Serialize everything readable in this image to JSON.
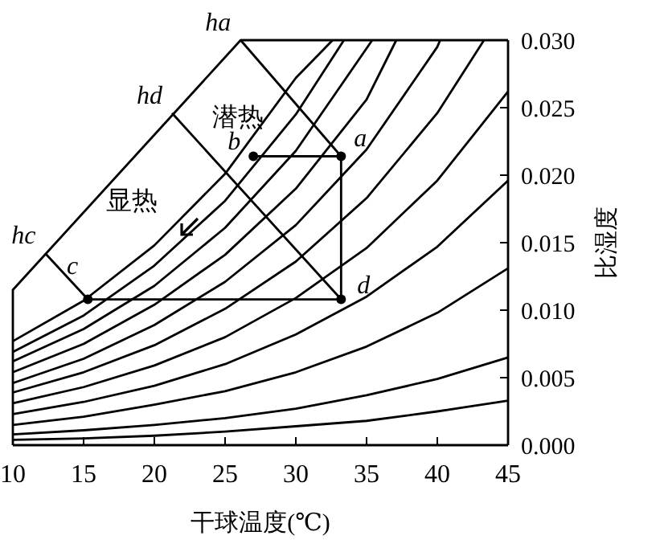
{
  "chart_data": {
    "type": "line",
    "xlabel": "干球温度(℃)",
    "ylabel": "比湿度",
    "xlim": [
      10,
      45
    ],
    "ylim": [
      0,
      0.03
    ],
    "xticks": [
      10,
      15,
      20,
      25,
      30,
      35,
      40,
      45
    ],
    "yticks": [
      {
        "value": 0,
        "label": "0.000"
      },
      {
        "value": 0.005,
        "label": "0.005"
      },
      {
        "value": 0.01,
        "label": "0.010"
      },
      {
        "value": 0.015,
        "label": "0.015"
      },
      {
        "value": 0.02,
        "label": "0.020"
      },
      {
        "value": 0.025,
        "label": "0.025"
      },
      {
        "value": 0.03,
        "label": "0.030"
      }
    ],
    "grid": false,
    "marker": "none",
    "line_style": "solid",
    "series": [
      {
        "color": "#000000",
        "x": [
          10,
          15,
          20,
          25,
          30,
          32.6
        ],
        "values": [
          0.0077,
          0.0107,
          0.0148,
          0.0201,
          0.0272,
          0.03
        ]
      },
      {
        "color": "#000000",
        "x": [
          10,
          15,
          20,
          25,
          30,
          33.4
        ],
        "values": [
          0.0069,
          0.0096,
          0.0133,
          0.0181,
          0.0245,
          0.03
        ]
      },
      {
        "color": "#000000",
        "x": [
          10,
          15,
          20,
          25,
          30,
          35.4
        ],
        "values": [
          0.0062,
          0.0086,
          0.0118,
          0.0161,
          0.0218,
          0.03
        ]
      },
      {
        "color": "#000000",
        "x": [
          10,
          15,
          20,
          25,
          30,
          35,
          37.1
        ],
        "values": [
          0.0054,
          0.0075,
          0.0104,
          0.0141,
          0.019,
          0.0256,
          0.03
        ]
      },
      {
        "color": "#000000",
        "x": [
          10,
          15,
          20,
          25,
          30,
          35,
          40,
          40.2
        ],
        "values": [
          0.0046,
          0.0064,
          0.0089,
          0.0121,
          0.0163,
          0.0219,
          0.0295,
          0.03
        ]
      },
      {
        "color": "#000000",
        "x": [
          10,
          15,
          20,
          25,
          30,
          35,
          40,
          43.3
        ],
        "values": [
          0.0039,
          0.0054,
          0.0074,
          0.0101,
          0.0136,
          0.0183,
          0.0246,
          0.03
        ]
      },
      {
        "color": "#000000",
        "x": [
          10,
          15,
          20,
          25,
          30,
          35,
          40,
          45
        ],
        "values": [
          0.0031,
          0.0043,
          0.0059,
          0.008,
          0.0109,
          0.0146,
          0.0196,
          0.0262
        ]
      },
      {
        "color": "#000000",
        "x": [
          10,
          15,
          20,
          25,
          30,
          35,
          40,
          45
        ],
        "values": [
          0.0023,
          0.0032,
          0.0044,
          0.006,
          0.0082,
          0.011,
          0.0147,
          0.0196
        ]
      },
      {
        "color": "#000000",
        "x": [
          10,
          15,
          20,
          25,
          30,
          35,
          40,
          45
        ],
        "values": [
          0.0015,
          0.0021,
          0.003,
          0.004,
          0.0054,
          0.0073,
          0.0098,
          0.0131
        ]
      },
      {
        "color": "#000000",
        "x": [
          10,
          15,
          20,
          25,
          30,
          35,
          40,
          45
        ],
        "values": [
          0.0008,
          0.0011,
          0.0015,
          0.002,
          0.0027,
          0.0037,
          0.0049,
          0.0065
        ]
      },
      {
        "color": "#000000",
        "x": [
          10,
          15,
          20,
          25,
          30,
          35,
          40,
          45
        ],
        "values": [
          0.0004,
          0.0005,
          0.0007,
          0.001,
          0.0014,
          0.0018,
          0.0025,
          0.0033
        ]
      },
      {
        "color": "#000000",
        "x": [
          10,
          10,
          26.1,
          45
        ],
        "values": [
          0,
          0.0115,
          0.03,
          0.03
        ]
      },
      {
        "color": "#000000",
        "x": [
          26.1,
          33.2
        ],
        "values": [
          0.03,
          0.0214
        ]
      },
      {
        "color": "#000000",
        "x": [
          21.25,
          33.2
        ],
        "values": [
          0.0246,
          0.0108
        ]
      },
      {
        "color": "#000000",
        "x": [
          12.3,
          15.3
        ],
        "values": [
          0.0142,
          0.0108
        ]
      },
      {
        "color": "#000000",
        "x": [
          15.3,
          33.2,
          33.2,
          27.0
        ],
        "values": [
          0.0108,
          0.0108,
          0.0214,
          0.0214
        ]
      },
      {
        "type": "scatter",
        "marker": "circle",
        "color": "#000000",
        "x": [
          33.2,
          27.0,
          15.3,
          33.2
        ],
        "values": [
          0.0214,
          0.0214,
          0.0108,
          0.0108
        ]
      }
    ],
    "annotations": [
      {
        "text": "a",
        "x": 33.2,
        "y": 0.0214
      },
      {
        "text": "b",
        "x": 27.0,
        "y": 0.0214
      },
      {
        "text": "c",
        "x": 15.3,
        "y": 0.0108
      },
      {
        "text": "d",
        "x": 33.2,
        "y": 0.0108
      },
      {
        "text": "ha",
        "x": 26.1,
        "y": 0.03
      },
      {
        "text": "hd",
        "x": 21.25,
        "y": 0.0246
      },
      {
        "text": "hc",
        "x": 12.3,
        "y": 0.0142
      },
      "潜热",
      "显热"
    ]
  }
}
